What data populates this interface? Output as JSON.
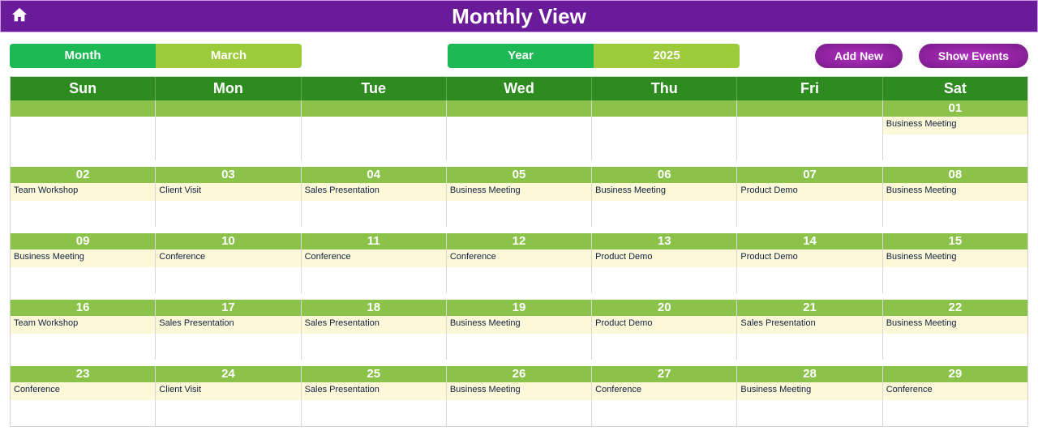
{
  "header": {
    "title": "Monthly View"
  },
  "controls": {
    "month_label": "Month",
    "month_value": "March",
    "year_label": "Year",
    "year_value": "2025",
    "add_new": "Add New",
    "show_events": "Show Events"
  },
  "colors": {
    "header_bg": "#6a1b9a",
    "weekday_bg": "#2e8b20",
    "date_strip_bg": "#8bc34a",
    "event_bg": "#fcf8d8",
    "pill_dark": "#1db954",
    "pill_light": "#9ccc3c",
    "button_bg": "#8a1a9a"
  },
  "weekdays": [
    "Sun",
    "Mon",
    "Tue",
    "Wed",
    "Thu",
    "Fri",
    "Sat"
  ],
  "weeks": [
    [
      {
        "date": "",
        "event": ""
      },
      {
        "date": "",
        "event": ""
      },
      {
        "date": "",
        "event": ""
      },
      {
        "date": "",
        "event": ""
      },
      {
        "date": "",
        "event": ""
      },
      {
        "date": "",
        "event": ""
      },
      {
        "date": "01",
        "event": "Business Meeting"
      }
    ],
    [
      {
        "date": "02",
        "event": "Team Workshop"
      },
      {
        "date": "03",
        "event": "Client Visit"
      },
      {
        "date": "04",
        "event": "Sales Presentation"
      },
      {
        "date": "05",
        "event": "Business Meeting"
      },
      {
        "date": "06",
        "event": "Business Meeting"
      },
      {
        "date": "07",
        "event": "Product Demo"
      },
      {
        "date": "08",
        "event": "Business Meeting"
      }
    ],
    [
      {
        "date": "09",
        "event": "Business Meeting"
      },
      {
        "date": "10",
        "event": "Conference"
      },
      {
        "date": "11",
        "event": "Conference"
      },
      {
        "date": "12",
        "event": "Conference"
      },
      {
        "date": "13",
        "event": "Product Demo"
      },
      {
        "date": "14",
        "event": "Product Demo"
      },
      {
        "date": "15",
        "event": "Business Meeting"
      }
    ],
    [
      {
        "date": "16",
        "event": "Team Workshop"
      },
      {
        "date": "17",
        "event": "Sales Presentation"
      },
      {
        "date": "18",
        "event": "Sales Presentation"
      },
      {
        "date": "19",
        "event": "Business Meeting"
      },
      {
        "date": "20",
        "event": "Product Demo"
      },
      {
        "date": "21",
        "event": "Sales Presentation"
      },
      {
        "date": "22",
        "event": "Business Meeting"
      }
    ],
    [
      {
        "date": "23",
        "event": "Conference"
      },
      {
        "date": "24",
        "event": "Client Visit"
      },
      {
        "date": "25",
        "event": "Sales Presentation"
      },
      {
        "date": "26",
        "event": "Business Meeting"
      },
      {
        "date": "27",
        "event": "Conference"
      },
      {
        "date": "28",
        "event": "Business Meeting"
      },
      {
        "date": "29",
        "event": "Conference"
      }
    ]
  ]
}
